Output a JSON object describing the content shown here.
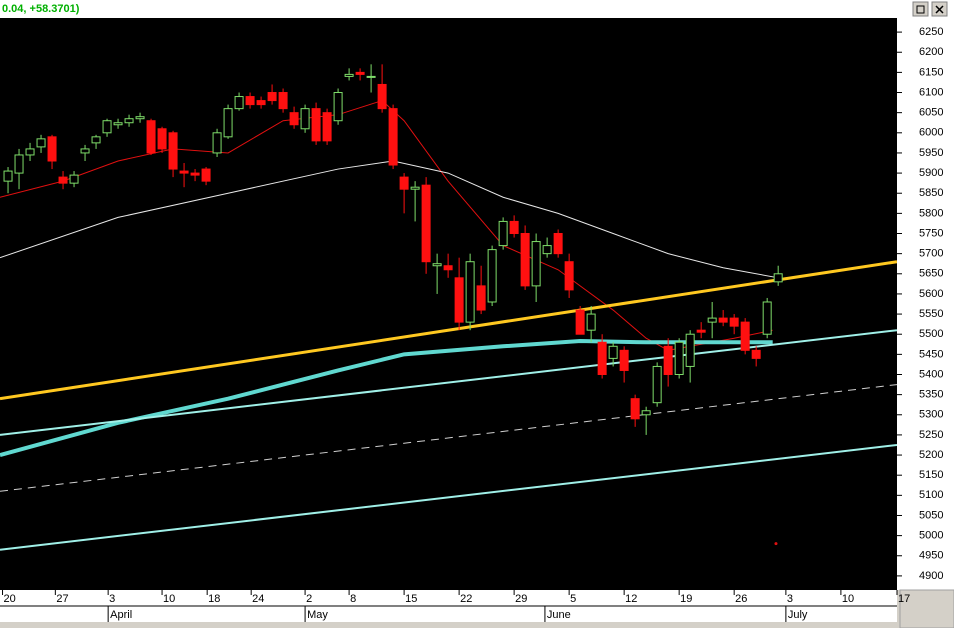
{
  "header": {
    "readout": "0.04, +58.3701)"
  },
  "chart_data": {
    "type": "candlestick",
    "xlim": [
      -0.73,
      80.8
    ],
    "ylim": [
      4865,
      6285
    ],
    "yticks": [
      4900,
      4950,
      5000,
      5050,
      5100,
      5150,
      5200,
      5250,
      5300,
      5350,
      5400,
      5450,
      5500,
      5550,
      5600,
      5650,
      5700,
      5750,
      5800,
      5850,
      5900,
      5950,
      6000,
      6050,
      6100,
      6150,
      6200,
      6250
    ],
    "xticks": [
      {
        "value": -0.5,
        "label": "20"
      },
      {
        "value": 4.3,
        "label": "27"
      },
      {
        "value": 9.1,
        "label": "3"
      },
      {
        "value": 14,
        "label": "10"
      },
      {
        "value": 18.1,
        "label": "18"
      },
      {
        "value": 22.1,
        "label": "24"
      },
      {
        "value": 27,
        "label": "2"
      },
      {
        "value": 31,
        "label": "8"
      },
      {
        "value": 36,
        "label": "15"
      },
      {
        "value": 41,
        "label": "22"
      },
      {
        "value": 46,
        "label": "29"
      },
      {
        "value": 51,
        "label": "5"
      },
      {
        "value": 56,
        "label": "12"
      },
      {
        "value": 61,
        "label": "19"
      },
      {
        "value": 66,
        "label": "26"
      },
      {
        "value": 70.7,
        "label": "3"
      },
      {
        "value": 75.7,
        "label": "10"
      },
      {
        "value": 80.8,
        "label": "17"
      }
    ],
    "months": [
      {
        "value": 9.1,
        "label": "April"
      },
      {
        "value": 27,
        "label": "May"
      },
      {
        "value": 48.8,
        "label": "June"
      },
      {
        "value": 70.7,
        "label": "July"
      }
    ],
    "up_color": "#7fdd6a",
    "down_color": "#ff1010",
    "x": [
      0,
      1,
      2,
      3,
      4,
      5,
      6,
      7,
      8,
      9,
      10,
      11,
      12,
      13,
      14,
      15,
      16,
      17,
      18,
      19,
      20,
      21,
      22,
      23,
      24,
      25,
      26,
      27,
      28,
      29,
      30,
      31,
      32,
      33,
      34,
      35,
      36,
      37,
      38,
      39,
      40,
      41,
      42,
      43,
      44,
      45,
      46,
      47,
      48,
      49,
      50,
      51,
      52,
      53,
      54,
      55,
      56,
      57,
      58,
      59,
      60,
      61,
      62,
      63,
      64,
      65,
      66,
      67,
      68,
      69,
      70
    ],
    "open": [
      5880,
      5900,
      5945,
      5965,
      5990,
      5890,
      5875,
      5950,
      5975,
      6000,
      6020,
      6025,
      6035,
      6030,
      6010,
      6000,
      5905,
      5900,
      5910,
      5950,
      5990,
      6060,
      6090,
      6080,
      6100,
      6100,
      6050,
      6010,
      6060,
      6050,
      6030,
      6140,
      6150,
      6140,
      6120,
      6060,
      5890,
      5860,
      5870,
      5670,
      5670,
      5640,
      5530,
      5620,
      5580,
      5720,
      5780,
      5750,
      5620,
      5700,
      5750,
      5680,
      5560,
      5510,
      5480,
      5440,
      5460,
      5340,
      5300,
      5330,
      5470,
      5400,
      5420,
      5510,
      5530,
      5540,
      5540,
      5530,
      5460,
      5500,
      5630
    ],
    "high": [
      5915,
      5960,
      5975,
      5995,
      5995,
      5905,
      5905,
      5970,
      5995,
      6035,
      6035,
      6045,
      6050,
      6035,
      6015,
      6005,
      5925,
      5910,
      5915,
      6010,
      6070,
      6100,
      6100,
      6090,
      6120,
      6110,
      6065,
      6070,
      6075,
      6060,
      6110,
      6160,
      6160,
      6170,
      6170,
      6070,
      5900,
      5880,
      5890,
      5700,
      5700,
      5690,
      5700,
      5670,
      5720,
      5790,
      5795,
      5770,
      5750,
      5740,
      5760,
      5700,
      5570,
      5570,
      5500,
      5480,
      5470,
      5350,
      5320,
      5430,
      5490,
      5490,
      5510,
      5530,
      5580,
      5560,
      5550,
      5540,
      5470,
      5590,
      5670
    ],
    "low": [
      5850,
      5860,
      5930,
      5950,
      5910,
      5860,
      5865,
      5930,
      5960,
      5990,
      6010,
      6015,
      6025,
      5945,
      5950,
      5890,
      5865,
      5880,
      5870,
      5940,
      5985,
      6055,
      6060,
      6060,
      6070,
      6050,
      6010,
      6000,
      5970,
      5970,
      6020,
      6130,
      6130,
      6100,
      6050,
      5910,
      5800,
      5780,
      5650,
      5600,
      5640,
      5510,
      5510,
      5550,
      5570,
      5710,
      5740,
      5610,
      5580,
      5690,
      5690,
      5590,
      5500,
      5480,
      5390,
      5420,
      5380,
      5270,
      5250,
      5320,
      5370,
      5390,
      5380,
      5490,
      5490,
      5520,
      5500,
      5450,
      5420,
      5490,
      5620
    ],
    "close": [
      5905,
      5945,
      5960,
      5985,
      5930,
      5875,
      5895,
      5960,
      5990,
      6030,
      6025,
      6035,
      6040,
      5950,
      5960,
      5910,
      5900,
      5895,
      5880,
      6000,
      6060,
      6090,
      6070,
      6070,
      6080,
      6060,
      6020,
      6060,
      5980,
      5980,
      6100,
      6145,
      6145,
      6140,
      6060,
      5920,
      5860,
      5865,
      5680,
      5675,
      5660,
      5530,
      5680,
      5560,
      5710,
      5780,
      5750,
      5620,
      5730,
      5720,
      5700,
      5610,
      5500,
      5550,
      5400,
      5470,
      5410,
      5290,
      5310,
      5420,
      5400,
      5480,
      5500,
      5505,
      5540,
      5530,
      5520,
      5460,
      5440,
      5580,
      5650
    ],
    "lines": [
      {
        "color": "#e01010",
        "width": 1,
        "x": [
          -0.73,
          5,
          10,
          15,
          20,
          25,
          30,
          34,
          36,
          40,
          45,
          50,
          55,
          58,
          60,
          62,
          66,
          69.5
        ],
        "y": [
          5840,
          5880,
          5930,
          5960,
          5950,
          6030,
          6045,
          6080,
          6030,
          5880,
          5720,
          5660,
          5560,
          5490,
          5460,
          5470,
          5490,
          5510
        ]
      },
      {
        "color": "#e8e8e8",
        "width": 1,
        "x": [
          -0.73,
          10,
          20,
          30,
          35,
          40,
          45,
          50,
          55,
          60,
          65,
          70
        ],
        "y": [
          5690,
          5790,
          5850,
          5910,
          5930,
          5900,
          5840,
          5800,
          5750,
          5700,
          5665,
          5640
        ]
      },
      {
        "color": "#ffc820",
        "width": 3,
        "x": [
          -0.73,
          80.8
        ],
        "y": [
          5340,
          5680
        ]
      },
      {
        "color": "#60d8d0",
        "width": 4,
        "x": [
          -0.73,
          10,
          20,
          30,
          36,
          45,
          52,
          58,
          64,
          69.5
        ],
        "y": [
          5200,
          5280,
          5340,
          5410,
          5450,
          5470,
          5483,
          5480,
          5480,
          5480
        ]
      },
      {
        "color": "#a0f0e8",
        "width": 2,
        "x": [
          -0.73,
          80.8
        ],
        "y": [
          5250,
          5510
        ]
      },
      {
        "color": "#d0d0d0",
        "width": 1,
        "dashed": true,
        "x": [
          -0.73,
          80.8
        ],
        "y": [
          5110,
          5375
        ]
      },
      {
        "color": "#a0f0e8",
        "width": 2,
        "x": [
          -0.73,
          80.8
        ],
        "y": [
          4965,
          5225
        ]
      }
    ],
    "marker": {
      "color": "#e01010",
      "x": 69.8,
      "y": 4980
    }
  }
}
